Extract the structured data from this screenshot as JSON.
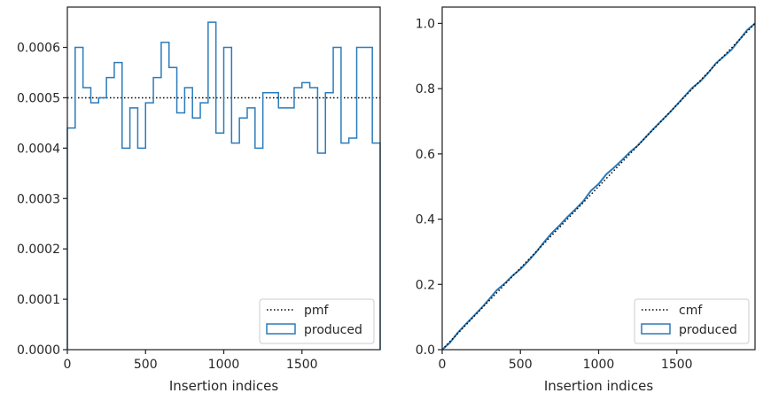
{
  "chart_data": [
    {
      "type": "histogram",
      "xlabel": "Insertion indices",
      "ylabel": "",
      "xlim": [
        0,
        2000
      ],
      "ylim": [
        0,
        0.00068
      ],
      "xticks": [
        0,
        500,
        1000,
        1500
      ],
      "xtick_labels": [
        "0",
        "500",
        "1000",
        "1500"
      ],
      "yticks": [
        0,
        0.0001,
        0.0002,
        0.0003,
        0.0004,
        0.0005,
        0.0006
      ],
      "ytick_labels": [
        "0.0000",
        "0.0001",
        "0.0002",
        "0.0003",
        "0.0004",
        "0.0005",
        "0.0006"
      ],
      "grid": false,
      "legend_position": "lower-right",
      "reference_line": {
        "name": "pmf",
        "y": 0.0005,
        "style": "dotted",
        "color": "#000000"
      },
      "series": [
        {
          "name": "produced",
          "style": "step",
          "color": "#2b7bba",
          "bin_edges": [
            0,
            50,
            100,
            150,
            200,
            250,
            300,
            350,
            400,
            450,
            500,
            550,
            600,
            650,
            700,
            750,
            800,
            850,
            900,
            950,
            1000,
            1050,
            1100,
            1150,
            1200,
            1250,
            1300,
            1350,
            1400,
            1450,
            1500,
            1550,
            1600,
            1650,
            1700,
            1750,
            1800,
            1850,
            1900,
            1950,
            2000
          ],
          "values": [
            0.00044,
            0.0006,
            0.00052,
            0.00049,
            0.0005,
            0.00054,
            0.00057,
            0.0004,
            0.00048,
            0.0004,
            0.00049,
            0.00054,
            0.00061,
            0.00056,
            0.00047,
            0.00052,
            0.00046,
            0.00049,
            0.00065,
            0.00043,
            0.0006,
            0.00041,
            0.00046,
            0.00048,
            0.0004,
            0.00051,
            0.00051,
            0.00048,
            0.00048,
            0.00052,
            0.00053,
            0.00052,
            0.00039,
            0.00051,
            0.0006,
            0.00041,
            0.00042,
            0.0006,
            0.0006,
            0.00041
          ]
        }
      ]
    },
    {
      "type": "line",
      "xlabel": "Insertion indices",
      "ylabel": "",
      "xlim": [
        0,
        2000
      ],
      "ylim": [
        0,
        1.05
      ],
      "xticks": [
        0,
        500,
        1000,
        1500
      ],
      "xtick_labels": [
        "0",
        "500",
        "1000",
        "1500"
      ],
      "yticks": [
        0,
        0.2,
        0.4,
        0.6,
        0.8,
        1.0
      ],
      "ytick_labels": [
        "0.0",
        "0.2",
        "0.4",
        "0.6",
        "0.8",
        "1.0"
      ],
      "grid": false,
      "legend_position": "lower-right",
      "reference_line": {
        "name": "cmf",
        "from": [
          0,
          0
        ],
        "to": [
          2000,
          1.0
        ],
        "style": "dotted",
        "color": "#000000"
      },
      "series": [
        {
          "name": "produced",
          "style": "cumulative-step",
          "color": "#2b7bba",
          "x": [
            0,
            50,
            100,
            150,
            200,
            250,
            300,
            350,
            400,
            450,
            500,
            550,
            600,
            650,
            700,
            750,
            800,
            850,
            900,
            950,
            1000,
            1050,
            1100,
            1150,
            1200,
            1250,
            1300,
            1350,
            1400,
            1450,
            1500,
            1550,
            1600,
            1650,
            1700,
            1750,
            1800,
            1850,
            1900,
            1950,
            2000
          ],
          "y": [
            0,
            0.022,
            0.052,
            0.078,
            0.1025,
            0.1275,
            0.1545,
            0.183,
            0.203,
            0.227,
            0.247,
            0.2715,
            0.2985,
            0.329,
            0.357,
            0.3805,
            0.4065,
            0.4295,
            0.454,
            0.4865,
            0.508,
            0.538,
            0.5585,
            0.5815,
            0.6055,
            0.6255,
            0.651,
            0.6765,
            0.7005,
            0.7245,
            0.7505,
            0.777,
            0.803,
            0.8225,
            0.848,
            0.878,
            0.8985,
            0.9195,
            0.9495,
            0.9795,
            1.0
          ]
        }
      ]
    }
  ]
}
